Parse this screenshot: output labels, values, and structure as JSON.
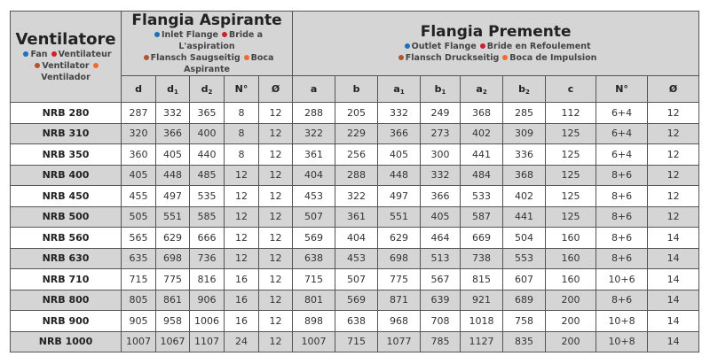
{
  "colors": {
    "fan": "#1f6fc0",
    "ventilateur": "#d0202f",
    "ventilator": "#b0552e",
    "ventilador": "#f26a30",
    "header_bg": "#d5d5d5",
    "row_alt_bg": "#d5d5d5"
  },
  "header": {
    "ventilatore": {
      "title": "Ventilatore",
      "line1": [
        {
          "text": "Fan",
          "color": "#1f6fc0"
        },
        {
          "text": "Ventilateur",
          "color": "#d0202f"
        }
      ],
      "line2": [
        {
          "text": "Ventilator",
          "color": "#b0552e"
        },
        {
          "text": "Ventilador",
          "color": "#f26a30"
        }
      ]
    },
    "aspirante": {
      "title": "Flangia Aspirante",
      "line1": [
        {
          "text": "Inlet Flange",
          "color": "#1f6fc0"
        },
        {
          "text": "Bride a L'aspiration",
          "color": "#d0202f"
        }
      ],
      "line2": [
        {
          "text": "Flansch Saugseitig",
          "color": "#b0552e"
        },
        {
          "text": "Boca Aspirante",
          "color": "#f26a30"
        }
      ]
    },
    "premente": {
      "title": "Flangia Premente",
      "line1": [
        {
          "text": "Outlet Flange",
          "color": "#1f6fc0"
        },
        {
          "text": "Bride en Refoulement",
          "color": "#d0202f"
        }
      ],
      "line2": [
        {
          "text": "Flansch Druckseitig",
          "color": "#b0552e"
        },
        {
          "text": "Boca de Impulsion",
          "color": "#f26a30"
        }
      ]
    }
  },
  "columns": [
    {
      "base": "d",
      "sub": ""
    },
    {
      "base": "d",
      "sub": "1"
    },
    {
      "base": "d",
      "sub": "2"
    },
    {
      "base": "N°",
      "sub": ""
    },
    {
      "base": "Ø",
      "sub": ""
    },
    {
      "base": "a",
      "sub": ""
    },
    {
      "base": "b",
      "sub": ""
    },
    {
      "base": "a",
      "sub": "1"
    },
    {
      "base": "b",
      "sub": "1"
    },
    {
      "base": "a",
      "sub": "2"
    },
    {
      "base": "b",
      "sub": "2"
    },
    {
      "base": "c",
      "sub": ""
    },
    {
      "base": "N°",
      "sub": ""
    },
    {
      "base": "Ø",
      "sub": ""
    }
  ],
  "rows": [
    [
      "NRB 280",
      "287",
      "332",
      "365",
      "8",
      "12",
      "288",
      "205",
      "332",
      "249",
      "368",
      "285",
      "112",
      "6+4",
      "12"
    ],
    [
      "NRB 310",
      "320",
      "366",
      "400",
      "8",
      "12",
      "322",
      "229",
      "366",
      "273",
      "402",
      "309",
      "125",
      "6+4",
      "12"
    ],
    [
      "NRB 350",
      "360",
      "405",
      "440",
      "8",
      "12",
      "361",
      "256",
      "405",
      "300",
      "441",
      "336",
      "125",
      "6+4",
      "12"
    ],
    [
      "NRB 400",
      "405",
      "448",
      "485",
      "12",
      "12",
      "404",
      "288",
      "448",
      "332",
      "484",
      "368",
      "125",
      "8+6",
      "12"
    ],
    [
      "NRB 450",
      "455",
      "497",
      "535",
      "12",
      "12",
      "453",
      "322",
      "497",
      "366",
      "533",
      "402",
      "125",
      "8+6",
      "12"
    ],
    [
      "NRB 500",
      "505",
      "551",
      "585",
      "12",
      "12",
      "507",
      "361",
      "551",
      "405",
      "587",
      "441",
      "125",
      "8+6",
      "12"
    ],
    [
      "NRB 560",
      "565",
      "629",
      "666",
      "12",
      "12",
      "569",
      "404",
      "629",
      "464",
      "669",
      "504",
      "160",
      "8+6",
      "14"
    ],
    [
      "NRB 630",
      "635",
      "698",
      "736",
      "12",
      "12",
      "638",
      "453",
      "698",
      "513",
      "738",
      "553",
      "160",
      "8+6",
      "14"
    ],
    [
      "NRB 710",
      "715",
      "775",
      "816",
      "16",
      "12",
      "715",
      "507",
      "775",
      "567",
      "815",
      "607",
      "160",
      "10+6",
      "14"
    ],
    [
      "NRB 800",
      "805",
      "861",
      "906",
      "16",
      "12",
      "801",
      "569",
      "871",
      "639",
      "921",
      "689",
      "200",
      "8+6",
      "14"
    ],
    [
      "NRB 900",
      "905",
      "958",
      "1006",
      "16",
      "12",
      "898",
      "638",
      "968",
      "708",
      "1018",
      "758",
      "200",
      "10+8",
      "14"
    ],
    [
      "NRB 1000",
      "1007",
      "1067",
      "1107",
      "24",
      "12",
      "1007",
      "715",
      "1077",
      "785",
      "1127",
      "835",
      "200",
      "10+8",
      "14"
    ]
  ]
}
